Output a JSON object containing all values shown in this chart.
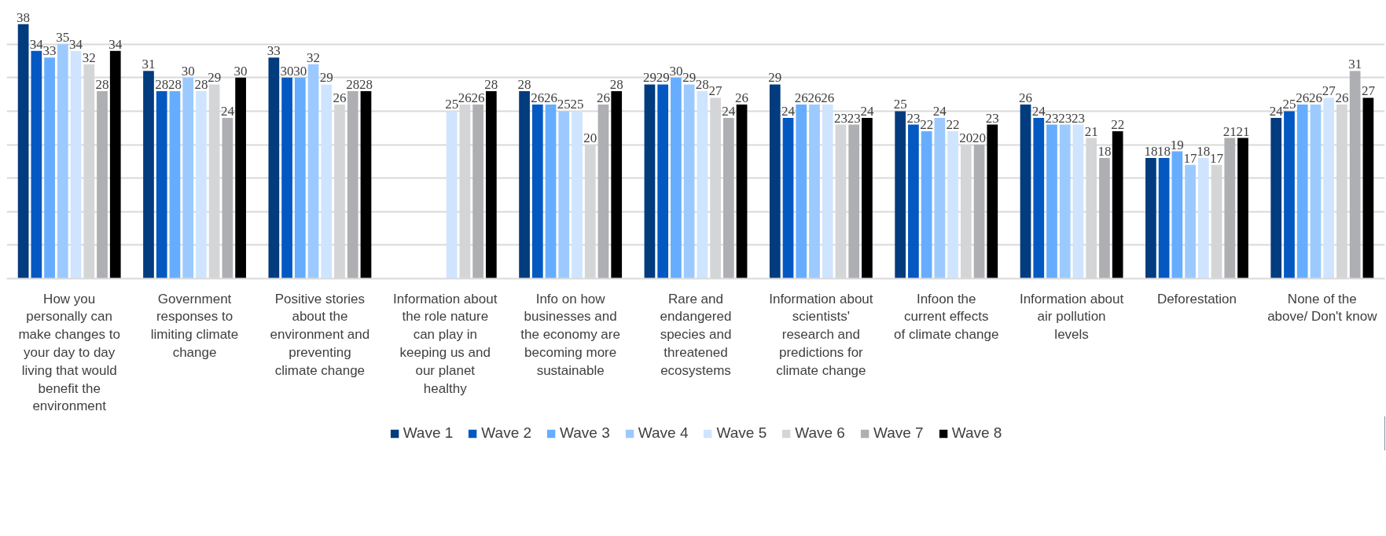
{
  "chart_data": {
    "type": "bar",
    "categories": [
      "How you personally can make changes to your day to day living that would benefit the environment",
      "Government responses to limiting climate change",
      "Positive stories about the environment and preventing climate change",
      "Information about the role nature can play in keeping us and our planet healthy",
      "Info on how businesses and the economy are becoming more sustainable",
      "Rare and endangered species and threatened ecosystems",
      "Information about scientists' research and predictions for climate change",
      "Infoon the current effects of climate change",
      "Information about air pollution levels",
      "Deforestation",
      "None of the above/ Don't know"
    ],
    "series": [
      {
        "name": "Wave 1",
        "color": "#023b7e",
        "values": [
          38,
          31,
          33,
          null,
          28,
          29,
          29,
          25,
          26,
          18,
          24
        ]
      },
      {
        "name": "Wave 2",
        "color": "#0358c2",
        "values": [
          34,
          28,
          30,
          null,
          26,
          29,
          24,
          23,
          24,
          18,
          25
        ]
      },
      {
        "name": "Wave 3",
        "color": "#66adff",
        "values": [
          33,
          28,
          30,
          null,
          26,
          30,
          26,
          22,
          23,
          19,
          26
        ]
      },
      {
        "name": "Wave 4",
        "color": "#9ccaff",
        "values": [
          35,
          30,
          32,
          null,
          25,
          29,
          26,
          24,
          23,
          17,
          26
        ]
      },
      {
        "name": "Wave 5",
        "color": "#cfe4ff",
        "values": [
          34,
          28,
          29,
          25,
          25,
          28,
          26,
          22,
          23,
          18,
          27
        ]
      },
      {
        "name": "Wave 6",
        "color": "#d4d5d7",
        "values": [
          32,
          29,
          26,
          26,
          20,
          27,
          23,
          20,
          21,
          17,
          26
        ]
      },
      {
        "name": "Wave 7",
        "color": "#adafb2",
        "values": [
          28,
          24,
          28,
          26,
          26,
          24,
          23,
          20,
          18,
          21,
          31
        ]
      },
      {
        "name": "Wave 8",
        "color": "#000000",
        "values": [
          34,
          30,
          28,
          28,
          28,
          26,
          24,
          23,
          22,
          21,
          27
        ]
      }
    ],
    "tick_labels": "x",
    "grid": "y",
    "data_labels": true,
    "legend": "bottom"
  }
}
